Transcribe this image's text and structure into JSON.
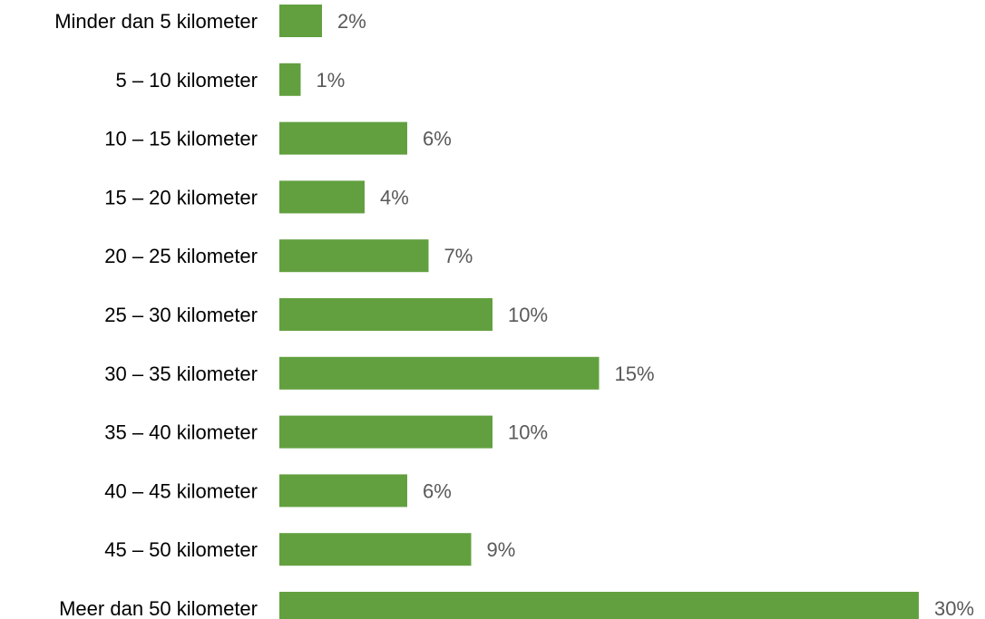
{
  "chart_data": {
    "type": "bar",
    "orientation": "horizontal",
    "categories": [
      "Minder dan 5 kilometer",
      "5 – 10 kilometer",
      "10 – 15 kilometer",
      "15 – 20 kilometer",
      "20 – 25 kilometer",
      "25 – 30 kilometer",
      "30 – 35 kilometer",
      "35 – 40 kilometer",
      "40 – 45 kilometer",
      "45 – 50 kilometer",
      "Meer dan 50 kilometer"
    ],
    "values": [
      2,
      1,
      6,
      4,
      7,
      10,
      15,
      10,
      6,
      9,
      30
    ],
    "value_labels": [
      "2%",
      "1%",
      "6%",
      "4%",
      "7%",
      "10%",
      "15%",
      "10%",
      "6%",
      "9%",
      "30%"
    ],
    "unit": "%",
    "xlim": [
      0,
      30
    ],
    "grid": false,
    "bar_color": "#62A03F",
    "label_color": "#595959"
  }
}
